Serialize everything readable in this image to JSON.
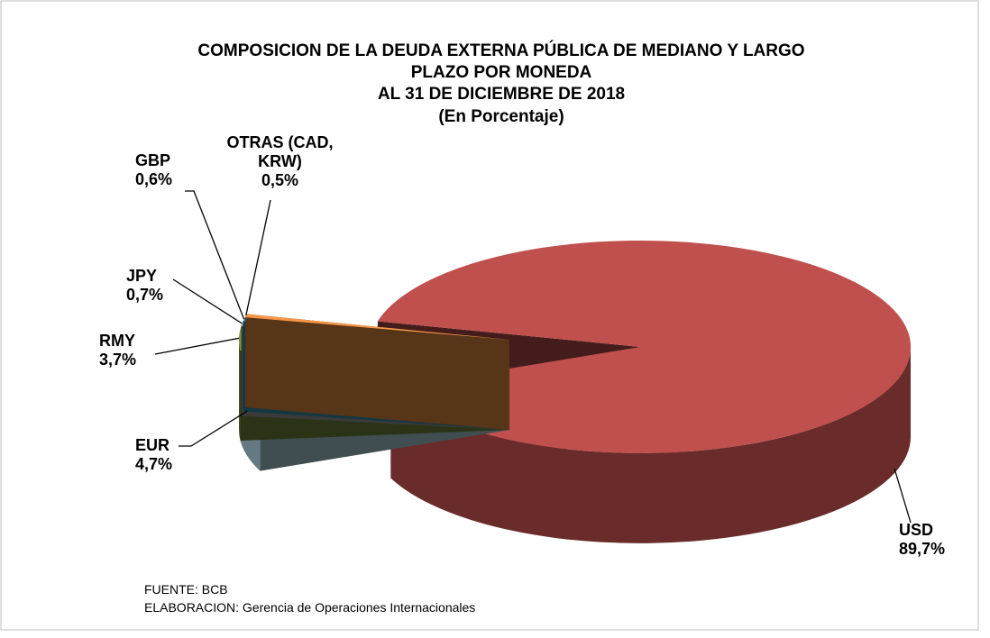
{
  "chart_data": {
    "type": "pie3d",
    "title": [
      "COMPOSICION DE LA DEUDA EXTERNA PÚBLICA DE MEDIANO Y LARGO",
      "PLAZO POR MONEDA",
      "AL 31 DE DICIEMBRE DE 2018"
    ],
    "subtitle": "(En Porcentaje)",
    "categories": [
      "USD",
      "EUR",
      "RMY",
      "JPY",
      "GBP",
      "OTRAS (CAD, KRW)"
    ],
    "values": [
      89.7,
      4.7,
      3.7,
      0.7,
      0.6,
      0.5
    ],
    "value_labels": [
      "89,7%",
      "4,7%",
      "3,7%",
      "0,7%",
      "0,6%",
      "0,5%"
    ],
    "colors": [
      "#c0504d",
      "#b7dee8",
      "#77933c",
      "#a6a6a6",
      "#31a0c0",
      "#f79646"
    ],
    "notes": [
      "FUENTE:  BCB",
      "ELABORACION:  Gerencia de Operaciones Internacionales"
    ]
  }
}
